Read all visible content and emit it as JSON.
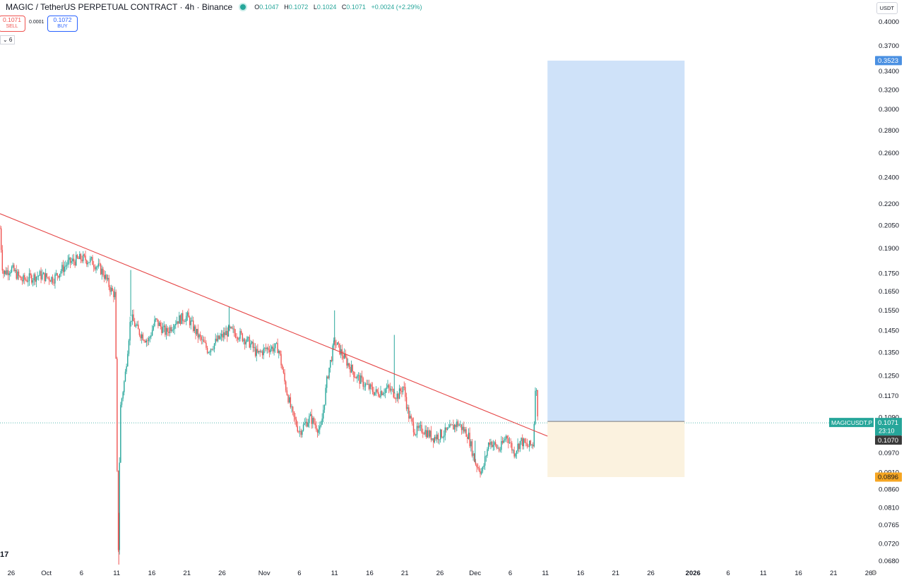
{
  "header": {
    "symbol": "MAGIC / TetherUS PERPETUAL CONTRACT · 4h · Binance",
    "ohlc": {
      "o_label": "O",
      "o": "0.1047",
      "h_label": "H",
      "h": "0.1072",
      "l_label": "L",
      "l": "0.1024",
      "c_label": "C",
      "c": "0.1071",
      "change": "+0.0024 (+2.29%)"
    }
  },
  "trade": {
    "sell_price": "0.1071",
    "sell_label": "SELL",
    "spread": "0.0001",
    "buy_price": "0.1072",
    "buy_label": "BUY"
  },
  "indicator_toggle": "⌄ 6",
  "currency": "USDT",
  "watermark": "17",
  "colors": {
    "up": "#26a69a",
    "down": "#ef5350",
    "trendline": "#e54545",
    "target_zone": "#cfe2f9",
    "stop_zone": "#fbf2df",
    "target_label": "#4a90e2",
    "stop_label": "#f6a623",
    "last_price": "#26a69a",
    "dark_label": "#3a3a3a"
  },
  "chart_data": {
    "type": "candlestick",
    "symbol_label": "MAGICUSDT.P",
    "last_price": "0.1071",
    "countdown": "23:10",
    "bid_label": "0.1070",
    "y_scale": "log",
    "ylim": [
      0.0672,
      0.43
    ],
    "y_ticks": [
      "0.4000",
      "0.3700",
      "0.3400",
      "0.3200",
      "0.3000",
      "0.2800",
      "0.2600",
      "0.2400",
      "0.2200",
      "0.2050",
      "0.1900",
      "0.1750",
      "0.1650",
      "0.1550",
      "0.1450",
      "0.1350",
      "0.1250",
      "0.1170",
      "0.1090",
      "0.1010",
      "0.0970",
      "0.0910",
      "0.0860",
      "0.0810",
      "0.0765",
      "0.0720",
      "0.0680"
    ],
    "x_ticks": [
      "26",
      "Oct",
      "6",
      "11",
      "16",
      "21",
      "26",
      "Nov",
      "6",
      "11",
      "16",
      "21",
      "26",
      "Dec",
      "6",
      "11",
      "16",
      "21",
      "26",
      "2026",
      "6",
      "11",
      "16",
      "21",
      "26"
    ],
    "x_tick_days": [
      -5,
      0,
      5,
      10,
      15,
      20,
      25,
      31,
      36,
      41,
      46,
      51,
      56,
      61,
      66,
      71,
      76,
      81,
      86,
      92,
      97,
      102,
      107,
      112,
      117
    ],
    "x_range_days": [
      -6.6,
      117.6
    ],
    "price_path": [
      [
        -6.6,
        0.203
      ],
      [
        -6.2,
        0.175
      ],
      [
        -5.0,
        0.178
      ],
      [
        -3.5,
        0.171
      ],
      [
        -1.0,
        0.174
      ],
      [
        1.0,
        0.172
      ],
      [
        3.0,
        0.181
      ],
      [
        5.0,
        0.184
      ],
      [
        6.5,
        0.182
      ],
      [
        8.0,
        0.176
      ],
      [
        9.3,
        0.165
      ],
      [
        9.8,
        0.163
      ],
      [
        10.2,
        0.0672
      ],
      [
        10.5,
        0.112
      ],
      [
        11.2,
        0.125
      ],
      [
        12.0,
        0.152
      ],
      [
        13.0,
        0.145
      ],
      [
        14.5,
        0.14
      ],
      [
        15.5,
        0.15
      ],
      [
        17.0,
        0.144
      ],
      [
        18.5,
        0.15
      ],
      [
        20.0,
        0.152
      ],
      [
        21.5,
        0.143
      ],
      [
        23.0,
        0.136
      ],
      [
        24.5,
        0.141
      ],
      [
        26.0,
        0.145
      ],
      [
        27.5,
        0.143
      ],
      [
        29.0,
        0.139
      ],
      [
        30.0,
        0.134
      ],
      [
        31.5,
        0.137
      ],
      [
        33.0,
        0.137
      ],
      [
        34.0,
        0.121
      ],
      [
        35.0,
        0.11
      ],
      [
        36.0,
        0.104
      ],
      [
        37.5,
        0.109
      ],
      [
        39.0,
        0.104
      ],
      [
        40.0,
        0.125
      ],
      [
        41.0,
        0.14
      ],
      [
        42.5,
        0.132
      ],
      [
        44.0,
        0.125
      ],
      [
        45.5,
        0.121
      ],
      [
        47.0,
        0.118
      ],
      [
        48.5,
        0.12
      ],
      [
        50.0,
        0.117
      ],
      [
        50.8,
        0.121
      ],
      [
        51.5,
        0.11
      ],
      [
        52.5,
        0.104
      ],
      [
        53.5,
        0.105
      ],
      [
        55.0,
        0.102
      ],
      [
        57.0,
        0.104
      ],
      [
        58.5,
        0.107
      ],
      [
        60.0,
        0.103
      ],
      [
        61.0,
        0.094
      ],
      [
        62.0,
        0.091
      ],
      [
        63.0,
        0.101
      ],
      [
        64.5,
        0.098
      ],
      [
        65.5,
        0.103
      ],
      [
        66.5,
        0.097
      ],
      [
        67.5,
        0.101
      ],
      [
        68.5,
        0.099
      ],
      [
        69.3,
        0.1
      ],
      [
        69.6,
        0.124
      ],
      [
        70.0,
        0.1071
      ]
    ],
    "spikes": [
      [
        10.3,
        0.0672
      ],
      [
        12.0,
        0.177
      ],
      [
        26.0,
        0.157
      ],
      [
        41.0,
        0.155
      ],
      [
        49.5,
        0.143
      ],
      [
        61.0,
        0.101
      ],
      [
        69.6,
        0.124
      ]
    ],
    "trendline": {
      "points": [
        [
          -6.6,
          0.213
        ],
        [
          71.3,
          0.1025
        ]
      ]
    },
    "position": {
      "entry": 0.1076,
      "target": 0.3523,
      "stop": 0.0896,
      "x_start_days": 71.3,
      "x_end_days": 90.8,
      "target_label": "0.3523",
      "stop_label": "0.0896"
    }
  }
}
